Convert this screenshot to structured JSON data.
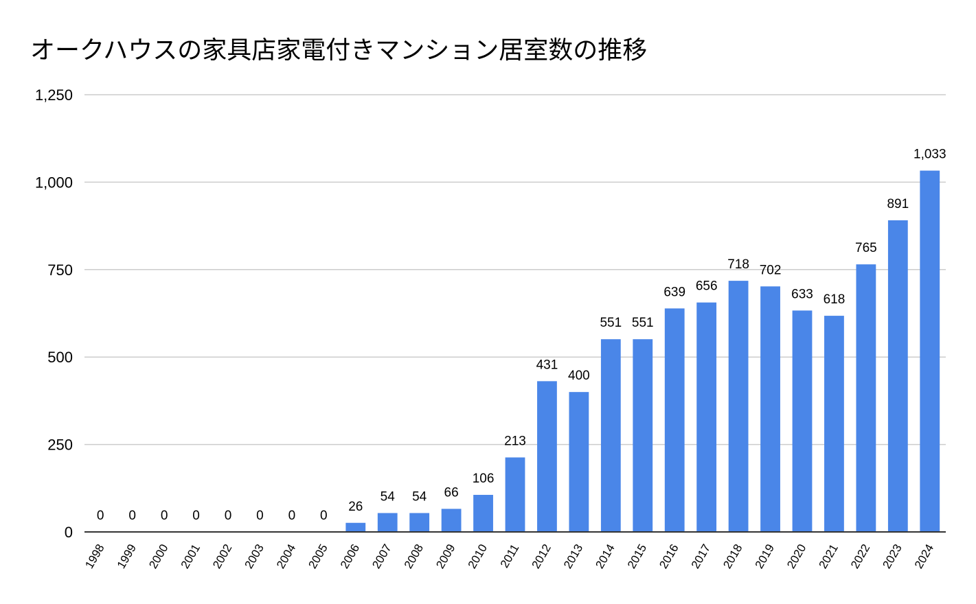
{
  "chart_data": {
    "type": "bar",
    "title": "オークハウスの家具店家電付きマンション居室数の推移",
    "xlabel": "",
    "ylabel": "",
    "ylim": [
      0,
      1250
    ],
    "yticks": [
      0,
      250,
      500,
      750,
      1000,
      1250
    ],
    "ytick_labels": [
      "0",
      "250",
      "500",
      "750",
      "1,000",
      "1,250"
    ],
    "grid": true,
    "legend": "none",
    "categories": [
      "1998",
      "1999",
      "2000",
      "2001",
      "2002",
      "2003",
      "2004",
      "2005",
      "2006",
      "2007",
      "2008",
      "2009",
      "2010",
      "2011",
      "2012",
      "2013",
      "2014",
      "2015",
      "2016",
      "2017",
      "2018",
      "2019",
      "2020",
      "2021",
      "2022",
      "2023",
      "2024"
    ],
    "values": [
      0,
      0,
      0,
      0,
      0,
      0,
      0,
      0,
      26,
      54,
      54,
      66,
      106,
      213,
      431,
      400,
      551,
      551,
      639,
      656,
      718,
      702,
      633,
      618,
      765,
      891,
      1033
    ],
    "data_labels": [
      "0",
      "0",
      "0",
      "0",
      "0",
      "0",
      "0",
      "0",
      "26",
      "54",
      "54",
      "66",
      "106",
      "213",
      "431",
      "400",
      "551",
      "551",
      "639",
      "656",
      "718",
      "702",
      "633",
      "618",
      "765",
      "891",
      "1,033"
    ],
    "colors": {
      "bar": "#4a86e8",
      "grid": "#cccccc",
      "axis": "#333333"
    }
  }
}
